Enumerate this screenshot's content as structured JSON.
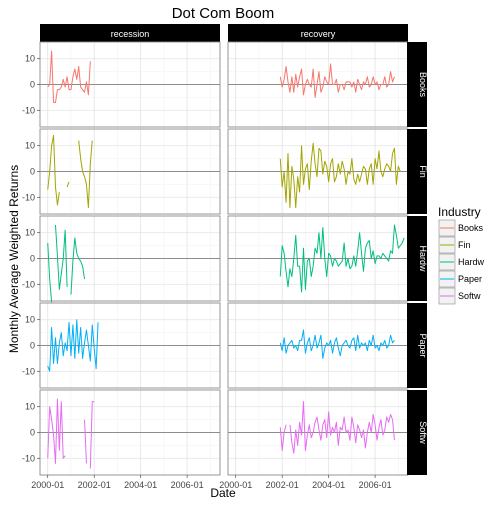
{
  "chart_data": {
    "type": "line",
    "title": "Dot Com Boom",
    "xlabel": "Date",
    "ylabel": "Monthly Average Weighted Returns",
    "legend": {
      "title": "Industry",
      "placement": "right",
      "entries": [
        "Books",
        "Fin",
        "Hardw",
        "Paper",
        "Softw"
      ]
    },
    "col_facets": [
      "recession",
      "recovery"
    ],
    "row_facets": [
      "Books",
      "Fin",
      "Hardw",
      "Paper",
      "Softw"
    ],
    "colors": {
      "Books": "#F8766D",
      "Fin": "#A3A500",
      "Hardw": "#00BF7D",
      "Paper": "#00B0F6",
      "Softw": "#E76BF3"
    },
    "x_axis": {
      "type": "date",
      "range": [
        "1999-09-01",
        "2007-06-01"
      ],
      "ticks": [
        "2000-01",
        "2002-01",
        "2004-01",
        "2006-01"
      ]
    },
    "y_axis": {
      "range": [
        -16.5,
        16.5
      ],
      "ticks": [
        -10,
        0,
        10
      ],
      "tick_labels": [
        "-10",
        "0",
        "10"
      ],
      "reference_line": 0
    },
    "grid": true,
    "series": [
      {
        "name": "Books",
        "facet": "recession",
        "start": "2000-01",
        "values": [
          -1,
          0,
          13,
          -7,
          -7,
          -2,
          -2,
          -1,
          2,
          -1,
          3,
          -2,
          -2,
          3,
          6,
          2,
          7,
          -1,
          -2,
          -3,
          1,
          -4,
          9
        ]
      },
      {
        "name": "Books",
        "facet": "recovery",
        "start": "2001-12",
        "values": [
          3,
          -1,
          2,
          7,
          1,
          -3,
          3,
          -3,
          4,
          -1,
          3,
          6,
          -4,
          0,
          2,
          0,
          -1,
          6,
          -5,
          0,
          5,
          -3,
          -1,
          3,
          1,
          0,
          8,
          0,
          0,
          2,
          -3,
          0,
          0,
          -2,
          1,
          1,
          1,
          -1,
          1,
          -3,
          2,
          0,
          -2,
          1,
          0,
          3,
          -1,
          0,
          3,
          0,
          1,
          -2,
          0,
          0,
          3,
          -1,
          0,
          5,
          1,
          3
        ]
      },
      {
        "name": "Fin",
        "facet": "recession",
        "start": "2000-01",
        "values": [
          -7,
          0,
          10,
          14,
          -6,
          -13,
          -8,
          null,
          null,
          null,
          -6,
          -4,
          null,
          null,
          null,
          null,
          12,
          5,
          0,
          -2,
          -5,
          -14,
          3,
          12
        ]
      },
      {
        "name": "Fin",
        "facet": "recovery",
        "start": "2001-12",
        "values": [
          5,
          -6,
          0,
          -12,
          7,
          -14,
          2,
          -3,
          -14,
          -2,
          -8,
          10,
          -5,
          1,
          3,
          -7,
          4,
          11,
          3,
          -2,
          9,
          8,
          -1,
          4,
          2,
          -4,
          3,
          5,
          -4,
          -2,
          3,
          -1,
          4,
          1,
          -5,
          0,
          -1,
          5,
          -3,
          -5,
          -1,
          -4,
          -1,
          2,
          1,
          -5,
          1,
          3,
          -5,
          5,
          1,
          8,
          0,
          -2,
          1,
          3,
          2,
          0,
          7,
          9,
          -5,
          2,
          0
        ]
      },
      {
        "name": "Hardw",
        "facet": "recession",
        "start": "2000-01",
        "values": [
          6,
          -8,
          -17,
          null,
          13,
          1,
          -12,
          -6,
          0,
          11,
          -11,
          null,
          -14,
          -1,
          8,
          2,
          0,
          -1,
          -3,
          -8
        ]
      },
      {
        "name": "Hardw",
        "facet": "recovery",
        "start": "2001-12",
        "values": [
          -7,
          5,
          2,
          -5,
          -11,
          -4,
          -7,
          0,
          9,
          -3,
          -3,
          -13,
          4,
          -12,
          -1,
          0,
          -7,
          -3,
          4,
          2,
          10,
          0,
          12,
          0,
          -7,
          2,
          1,
          -3,
          0,
          -1,
          -3,
          -2,
          -1,
          6,
          -3,
          0,
          -4,
          -3,
          1,
          -3,
          3,
          10,
          2,
          -5,
          4,
          6,
          7,
          0,
          3,
          -2,
          1,
          1,
          0,
          2,
          1,
          0,
          -1,
          3,
          2,
          13,
          9,
          4,
          5,
          6,
          8
        ]
      },
      {
        "name": "Paper",
        "facet": "recession",
        "start": "2000-01",
        "values": [
          -8,
          -10,
          7,
          -7,
          3,
          -7,
          1,
          5,
          -4,
          1,
          -2,
          9,
          -4,
          8,
          -5,
          10,
          -3,
          7,
          -5,
          1,
          6,
          0,
          -6,
          8,
          -1,
          -9,
          9
        ]
      },
      {
        "name": "Paper",
        "facet": "recovery",
        "start": "2001-12",
        "values": [
          1,
          -2,
          3,
          -3,
          0,
          1,
          2,
          -1,
          0,
          -2,
          2,
          2,
          6,
          -3,
          1,
          3,
          -2,
          0,
          4,
          -1,
          1,
          4,
          -5,
          -1,
          1,
          0,
          2,
          -3,
          1,
          3,
          -1,
          -4,
          0,
          1,
          2,
          0,
          -1,
          2,
          3,
          -2,
          4,
          -1,
          1,
          0,
          1,
          -2,
          2,
          0,
          4,
          -1,
          0,
          -2,
          1,
          0,
          2,
          -1,
          0,
          4,
          1,
          2
        ]
      },
      {
        "name": "Softw",
        "facet": "recession",
        "start": "2000-01",
        "values": [
          -10,
          10,
          5,
          -1,
          -12,
          13,
          -7,
          12,
          -10,
          -9,
          null,
          null,
          null,
          null,
          null,
          null,
          null,
          null,
          null,
          5,
          -12,
          null,
          -14,
          12,
          12
        ]
      },
      {
        "name": "Softw",
        "facet": "recovery",
        "start": "2001-12",
        "values": [
          2,
          -7,
          0,
          3,
          null,
          3,
          -4,
          -8,
          1,
          -5,
          4,
          -1,
          12,
          -7,
          -1,
          3,
          -2,
          0,
          4,
          6,
          1,
          -3,
          3,
          5,
          -2,
          8,
          -1,
          2,
          0,
          4,
          -5,
          2,
          1,
          6,
          0,
          1,
          -3,
          6,
          2,
          -4,
          3,
          1,
          -2,
          1,
          -6,
          0,
          4,
          0,
          7,
          3,
          -3,
          2,
          5,
          -1,
          1,
          6,
          4,
          7,
          5,
          -3
        ]
      }
    ]
  }
}
